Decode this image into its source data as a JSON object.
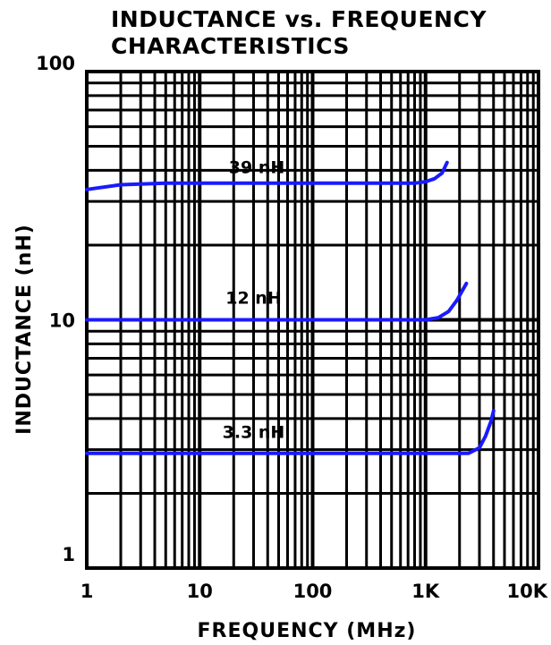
{
  "chart_data": {
    "type": "line",
    "title_lines": [
      "INDUCTANCE vs. FREQUENCY",
      "CHARACTERISTICS"
    ],
    "xlabel": "FREQUENCY (MHz)",
    "ylabel": "INDUCTANCE (nH)",
    "x_scale": "log",
    "y_scale": "log",
    "xlim": [
      1,
      10000
    ],
    "ylim": [
      1,
      100
    ],
    "x_ticks": [
      {
        "value": 1,
        "label": "1"
      },
      {
        "value": 10,
        "label": "10"
      },
      {
        "value": 100,
        "label": "100"
      },
      {
        "value": 1000,
        "label": "1K"
      },
      {
        "value": 10000,
        "label": "10K"
      }
    ],
    "y_ticks": [
      {
        "value": 1,
        "label": "1"
      },
      {
        "value": 10,
        "label": "10"
      },
      {
        "value": 100,
        "label": "100"
      }
    ],
    "grid": true,
    "line_color": "#1a1aff",
    "series": [
      {
        "name": "39 nH",
        "label": "39 nH",
        "label_at": {
          "x": 32,
          "y": 39
        },
        "points": [
          {
            "x": 1,
            "y": 33.5
          },
          {
            "x": 2,
            "y": 35
          },
          {
            "x": 5,
            "y": 35.5
          },
          {
            "x": 20,
            "y": 35.5
          },
          {
            "x": 200,
            "y": 35.5
          },
          {
            "x": 800,
            "y": 35.5
          },
          {
            "x": 1000,
            "y": 36
          },
          {
            "x": 1200,
            "y": 37
          },
          {
            "x": 1400,
            "y": 39
          },
          {
            "x": 1550,
            "y": 43
          }
        ]
      },
      {
        "name": "12 nH",
        "label": "12 nH",
        "label_at": {
          "x": 30,
          "y": 11.6
        },
        "points": [
          {
            "x": 1,
            "y": 10
          },
          {
            "x": 10,
            "y": 10
          },
          {
            "x": 100,
            "y": 10
          },
          {
            "x": 1000,
            "y": 10
          },
          {
            "x": 1300,
            "y": 10.2
          },
          {
            "x": 1600,
            "y": 10.8
          },
          {
            "x": 1900,
            "y": 12
          },
          {
            "x": 2300,
            "y": 14
          }
        ]
      },
      {
        "name": "3.3 nH",
        "label": "3.3 nH",
        "label_at": {
          "x": 30,
          "y": 3.35
        },
        "points": [
          {
            "x": 1,
            "y": 2.9
          },
          {
            "x": 10,
            "y": 2.9
          },
          {
            "x": 100,
            "y": 2.9
          },
          {
            "x": 1000,
            "y": 2.9
          },
          {
            "x": 2400,
            "y": 2.9
          },
          {
            "x": 3000,
            "y": 3.05
          },
          {
            "x": 3400,
            "y": 3.4
          },
          {
            "x": 3800,
            "y": 3.9
          },
          {
            "x": 4000,
            "y": 4.3
          }
        ]
      }
    ]
  }
}
